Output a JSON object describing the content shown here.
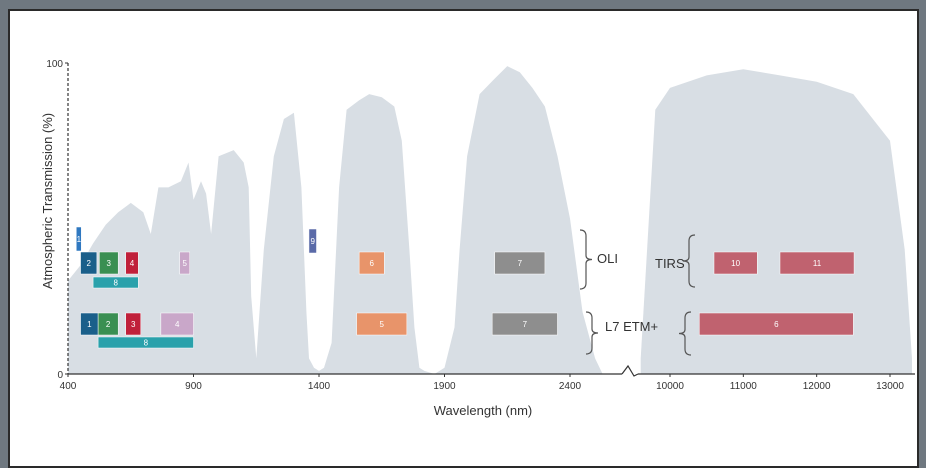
{
  "chart_data": {
    "type": "area",
    "xlabel": "Wavelength (nm)",
    "ylabel": "Atmospheric Transmission (%)",
    "x_ticks_left": [
      "400",
      "900",
      "1400",
      "1900",
      "2400"
    ],
    "x_ticks_right": [
      "10000",
      "11000",
      "12000",
      "13000"
    ],
    "y_ticks": [
      "0",
      "100"
    ],
    "ylim": [
      0,
      100
    ],
    "transmission_profile": {
      "left_nm": [
        [
          400,
          30
        ],
        [
          450,
          35
        ],
        [
          500,
          42
        ],
        [
          550,
          48
        ],
        [
          600,
          52
        ],
        [
          650,
          55
        ],
        [
          700,
          52
        ],
        [
          730,
          45
        ],
        [
          760,
          60
        ],
        [
          800,
          60
        ],
        [
          850,
          62
        ],
        [
          880,
          68
        ],
        [
          900,
          56
        ],
        [
          930,
          62
        ],
        [
          950,
          58
        ],
        [
          970,
          45
        ],
        [
          1000,
          70
        ],
        [
          1060,
          72
        ],
        [
          1100,
          68
        ],
        [
          1120,
          60
        ],
        [
          1130,
          25
        ],
        [
          1150,
          5
        ],
        [
          1180,
          40
        ],
        [
          1220,
          70
        ],
        [
          1260,
          82
        ],
        [
          1300,
          84
        ],
        [
          1330,
          60
        ],
        [
          1350,
          20
        ],
        [
          1360,
          5
        ],
        [
          1380,
          2
        ],
        [
          1400,
          1
        ],
        [
          1420,
          2
        ],
        [
          1450,
          10
        ],
        [
          1480,
          60
        ],
        [
          1510,
          85
        ],
        [
          1560,
          88
        ],
        [
          1600,
          90
        ],
        [
          1650,
          89
        ],
        [
          1700,
          86
        ],
        [
          1730,
          75
        ],
        [
          1760,
          40
        ],
        [
          1780,
          15
        ],
        [
          1800,
          2
        ],
        [
          1820,
          1
        ],
        [
          1860,
          0
        ],
        [
          1900,
          2
        ],
        [
          1940,
          15
        ],
        [
          1960,
          40
        ],
        [
          1990,
          70
        ],
        [
          2040,
          90
        ],
        [
          2100,
          95
        ],
        [
          2150,
          99
        ],
        [
          2200,
          97
        ],
        [
          2250,
          92
        ],
        [
          2300,
          86
        ],
        [
          2350,
          70
        ],
        [
          2400,
          50
        ],
        [
          2450,
          20
        ],
        [
          2500,
          5
        ],
        [
          2530,
          0
        ]
      ],
      "right_nm": [
        [
          9600,
          5
        ],
        [
          9800,
          85
        ],
        [
          10000,
          92
        ],
        [
          10500,
          96
        ],
        [
          11000,
          98
        ],
        [
          11500,
          96
        ],
        [
          12000,
          94
        ],
        [
          12500,
          90
        ],
        [
          13000,
          75
        ],
        [
          13200,
          40
        ],
        [
          13300,
          5
        ]
      ]
    },
    "oli_bands": [
      {
        "label": "1",
        "nm": [
          433,
          453
        ],
        "color": "#2f78c0"
      },
      {
        "label": "2",
        "nm": [
          450,
          515
        ],
        "color": "#1a5f8a"
      },
      {
        "label": "3",
        "nm": [
          525,
          600
        ],
        "color": "#3a8f52"
      },
      {
        "label": "4",
        "nm": [
          630,
          680
        ],
        "color": "#c0203a"
      },
      {
        "label": "5",
        "nm": [
          845,
          885
        ],
        "color": "#c9a7c9"
      },
      {
        "label": "6",
        "nm": [
          1560,
          1660
        ],
        "color": "#e8946a"
      },
      {
        "label": "7",
        "nm": [
          2100,
          2300
        ],
        "color": "#8e8e8e"
      },
      {
        "label": "8",
        "nm": [
          500,
          680
        ],
        "color": "#2aa1ab"
      },
      {
        "label": "9",
        "nm": [
          1360,
          1390
        ],
        "color": "#5a6aa8"
      }
    ],
    "tirs_bands": [
      {
        "label": "10",
        "nm": [
          10600,
          11190
        ],
        "color": "#c0626f"
      },
      {
        "label": "11",
        "nm": [
          11500,
          12510
        ],
        "color": "#c0626f"
      }
    ],
    "etm_bands": [
      {
        "label": "1",
        "nm": [
          450,
          520
        ],
        "color": "#1a5f8a"
      },
      {
        "label": "2",
        "nm": [
          520,
          600
        ],
        "color": "#3a8f52"
      },
      {
        "label": "3",
        "nm": [
          630,
          690
        ],
        "color": "#c0203a"
      },
      {
        "label": "4",
        "nm": [
          770,
          900
        ],
        "color": "#c9a7c9"
      },
      {
        "label": "5",
        "nm": [
          1550,
          1750
        ],
        "color": "#e8946a"
      },
      {
        "label": "7",
        "nm": [
          2090,
          2350
        ],
        "color": "#8e8e8e"
      },
      {
        "label": "8",
        "nm": [
          520,
          900
        ],
        "color": "#2aa1ab"
      },
      {
        "label": "6",
        "nm": [
          10400,
          12500
        ],
        "color": "#c0626f"
      }
    ],
    "group_labels": {
      "oli": "OLI",
      "tirs": "TIRS",
      "etm": "L7 ETM+"
    },
    "colors": {
      "area": "#d8dee4",
      "axis": "#333333",
      "band_label": "#ffffff"
    }
  }
}
